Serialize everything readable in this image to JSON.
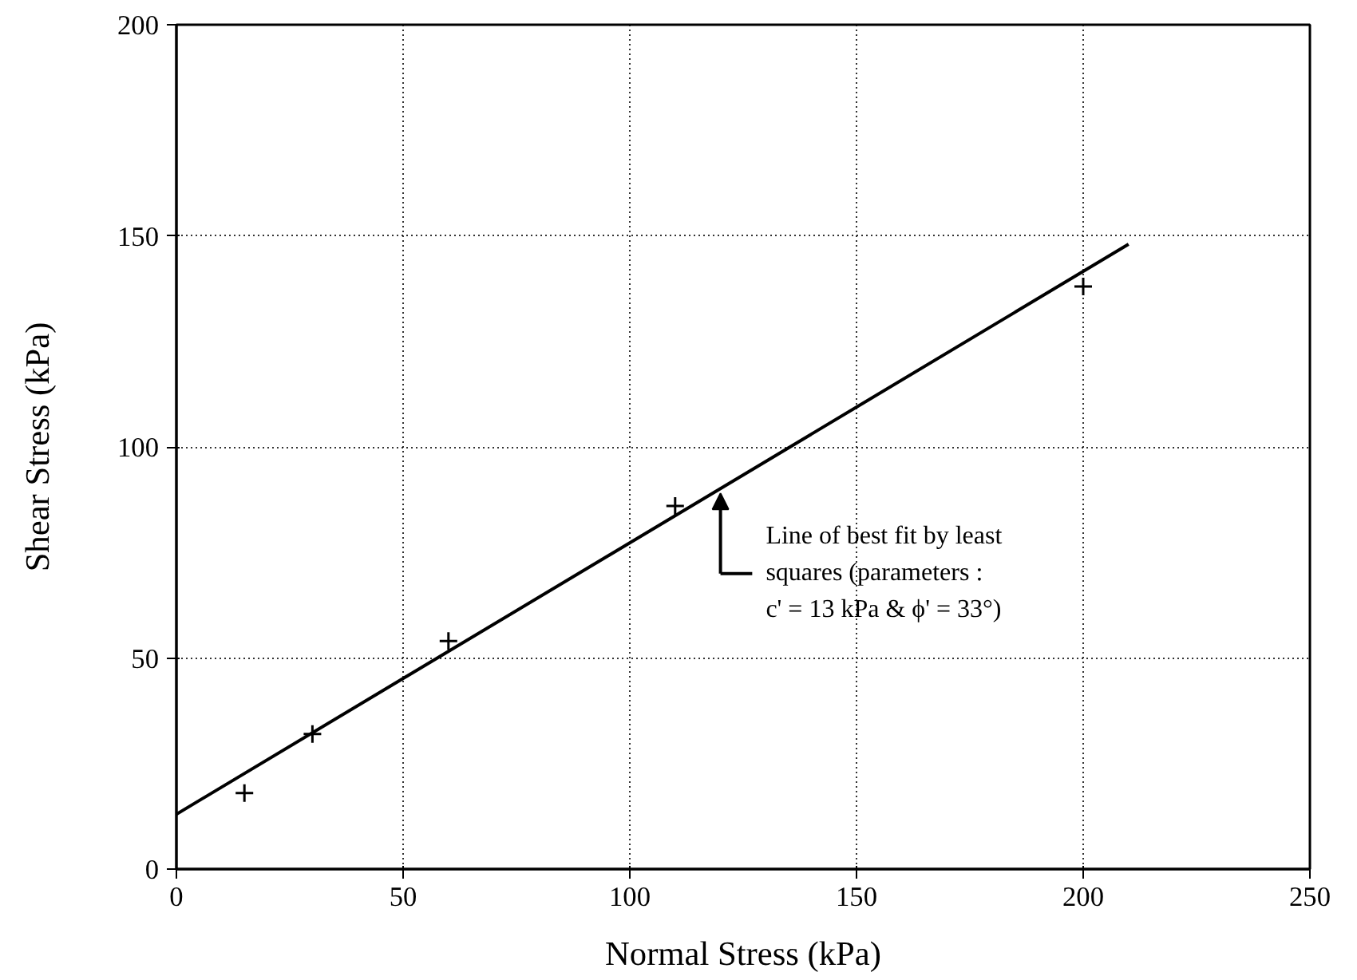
{
  "chart_data": {
    "type": "scatter",
    "xlabel": "Normal Stress (kPa)",
    "ylabel": "Shear Stress (kPa)",
    "xlim": [
      0,
      250
    ],
    "ylim": [
      0,
      200
    ],
    "xticks": [
      0,
      50,
      100,
      150,
      200,
      250
    ],
    "yticks": [
      0,
      50,
      100,
      150,
      200
    ],
    "grid": true,
    "series": [
      {
        "color": "#000000",
        "marker": "cross",
        "x": [
          15,
          30,
          60,
          110,
          200
        ],
        "values": [
          18,
          32,
          54,
          86,
          138
        ]
      },
      {
        "type": "line",
        "color": "#000000",
        "line_style": "solid",
        "x": [
          0,
          210
        ],
        "values": [
          13,
          148
        ]
      }
    ],
    "annotations": [
      {
        "text": "Line of best fit by least\nsquares (parameters :\nc' = 13 kPa & ϕ' = 33°)",
        "x": 120,
        "y": 89
      }
    ]
  }
}
